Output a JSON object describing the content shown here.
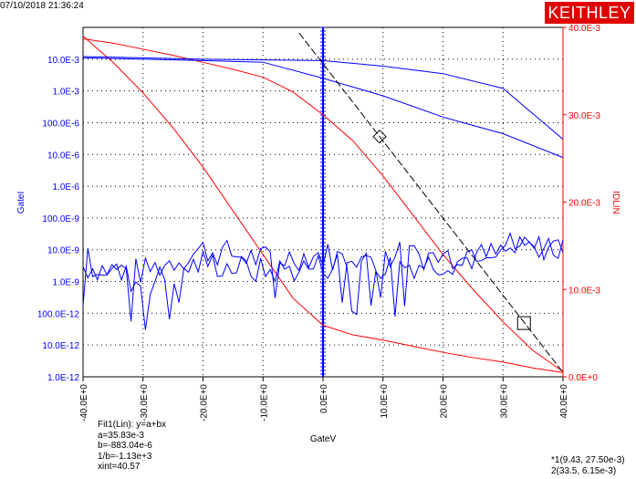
{
  "timestamp": "07/10/2018 21:36:24",
  "brand": "KEITHLEY",
  "colors": {
    "left_axis": "#0000ff",
    "right_axis": "#ff0000",
    "grid": "#000000",
    "fit_line": "#000000"
  },
  "fit_info": {
    "lines": [
      "Fit1(Lin): y=a+bx",
      "a=35.83e-3",
      "b=-883.04e-6",
      "1/b=-1.13e+3",
      "xint=40.57"
    ]
  },
  "cursor_info": {
    "lines": [
      "*1(9.43, 27.50e-3)",
      "2(33.5, 6.15e-3)"
    ]
  },
  "chart_data": {
    "type": "line",
    "xlabel": "GateV",
    "ylabel_left": "GateI",
    "ylabel_right": "IDLIN",
    "xlim": [
      -40,
      40
    ],
    "ylim_left_log10": [
      -13,
      -2
    ],
    "ylim_right": [
      0,
      0.04
    ],
    "x_ticks": [
      "-40.0E+0",
      "-30.0E+0",
      "-20.0E+0",
      "-10.0E+0",
      "0.0E+0",
      "10.0E+0",
      "20.0E+0",
      "30.0E+0",
      "40.0E+0"
    ],
    "left_ticks": [
      "10.0E-3",
      "1.0E-3",
      "100.0E-6",
      "10.0E-6",
      "1.0E-6",
      "100.0E-9",
      "10.0E-9",
      "1.0E-9",
      "100.0E-12",
      "10.0E-12",
      "1.0E-12"
    ],
    "right_ticks": [
      "40.0E-3",
      "30.0E-3",
      "20.0E-3",
      "10.0E-3",
      "0.0E+0"
    ],
    "grid": true,
    "series": [
      {
        "axis": "right",
        "color": "#ff0000",
        "x": [
          -40,
          -35,
          -30,
          -25,
          -20,
          -15,
          -10,
          -5,
          0,
          5,
          10,
          15,
          20,
          25,
          30,
          35,
          40
        ],
        "y": [
          0.0387,
          0.0382,
          0.0375,
          0.0368,
          0.036,
          0.0352,
          0.0343,
          0.0326,
          0.03,
          0.027,
          0.023,
          0.0185,
          0.014,
          0.01,
          0.0063,
          0.003,
          0.0006
        ]
      },
      {
        "axis": "right",
        "color": "#ff0000",
        "x": [
          -40,
          -35,
          -30,
          -25,
          -20,
          -15,
          -10,
          -5,
          0,
          5,
          10,
          15,
          20,
          25,
          30,
          35,
          40
        ],
        "y": [
          0.039,
          0.036,
          0.0325,
          0.0285,
          0.024,
          0.019,
          0.014,
          0.009,
          0.0059,
          0.0048,
          0.0042,
          0.0035,
          0.0028,
          0.0022,
          0.0017,
          0.001,
          0.0005
        ]
      },
      {
        "axis": "left",
        "color": "#0000ff",
        "x": [
          -40,
          -30,
          -20,
          -10,
          0,
          10,
          20,
          30,
          40
        ],
        "y": [
          0.0012,
          0.0011,
          0.001,
          0.00095,
          0.0009,
          0.0006,
          0.00035,
          0.00012,
          3e-06
        ]
      },
      {
        "axis": "left",
        "color": "#0000ff",
        "x": [
          -40,
          -30,
          -20,
          -10,
          0,
          10,
          20,
          30,
          40
        ],
        "y": [
          0.0011,
          0.001,
          0.0009,
          0.0008,
          0.00025,
          7e-05,
          1.5e-05,
          4.5e-06,
          8e-07
        ]
      },
      {
        "axis": "left",
        "color": "#0000ff",
        "noisy": true,
        "x": [
          -40,
          -30,
          -20,
          -10,
          0,
          10,
          20,
          30,
          40
        ],
        "y": [
          3e-10,
          2e-10,
          1e-09,
          5e-10,
          7e-10,
          3e-10,
          4e-10,
          8e-10,
          1.5e-09
        ]
      },
      {
        "axis": "left",
        "color": "#0000ff",
        "noisy": true,
        "x": [
          -40,
          -30,
          -20,
          -10,
          0,
          10,
          20,
          30,
          40
        ],
        "y": [
          5e-10,
          8e-11,
          4e-10,
          2e-10,
          3e-10,
          7e-10,
          6e-10,
          1.5e-09,
          1.2e-09
        ]
      }
    ],
    "fit_line": {
      "a": 0.03583,
      "b": -0.00088304
    },
    "markers": [
      {
        "shape": "diamond",
        "x": 9.43,
        "y": 0.0275
      },
      {
        "shape": "square",
        "x": 33.5,
        "y": 0.00615
      }
    ]
  }
}
